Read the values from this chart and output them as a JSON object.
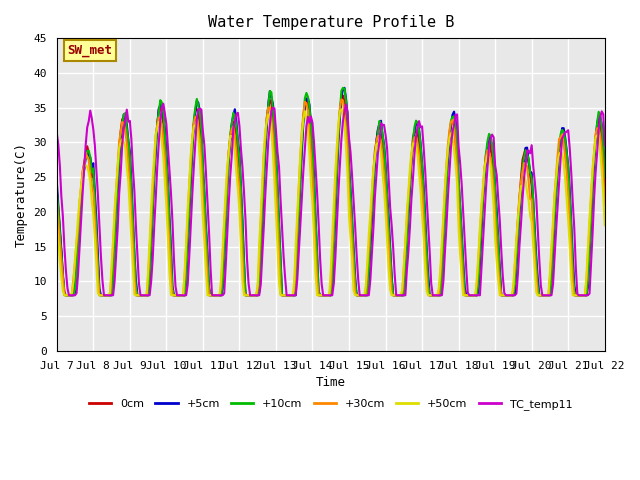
{
  "title": "Water Temperature Profile B",
  "xlabel": "Time",
  "ylabel": "Temperature(C)",
  "annotation": "SW_met",
  "ylim": [
    0,
    45
  ],
  "xlim_days": [
    0,
    15
  ],
  "series": {
    "0cm": {
      "color": "#cc0000",
      "lw": 1.5
    },
    "+5cm": {
      "color": "#0000cc",
      "lw": 1.5
    },
    "+10cm": {
      "color": "#00bb00",
      "lw": 1.5
    },
    "+30cm": {
      "color": "#ff8800",
      "lw": 1.5
    },
    "+50cm": {
      "color": "#dddd00",
      "lw": 1.5
    },
    "TC_temp11": {
      "color": "#cc00cc",
      "lw": 1.5
    }
  },
  "yticks": [
    0,
    5,
    10,
    15,
    20,
    25,
    30,
    35,
    40,
    45
  ],
  "bg_color": "#e8e8e8",
  "plot_bg": "#e8e8e8",
  "grid_color": "white",
  "font_family": "monospace"
}
